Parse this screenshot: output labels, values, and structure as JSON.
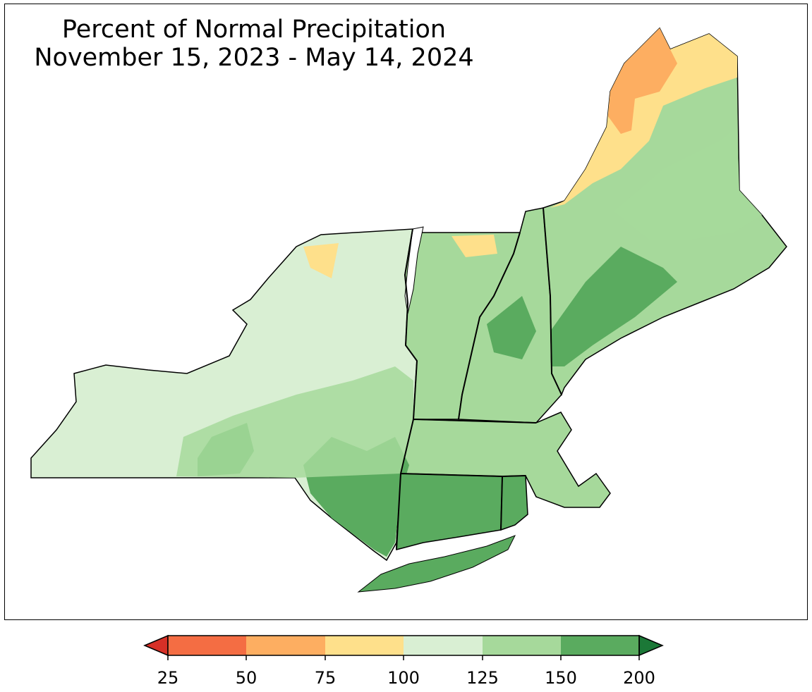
{
  "title": {
    "line1": "Percent of Normal Precipitation",
    "line2": "November 15, 2023 - May 14, 2024"
  },
  "legend": {
    "type": "colorbar",
    "extend": "both",
    "ticks": [
      "25",
      "50",
      "75",
      "100",
      "125",
      "150",
      "200"
    ],
    "colors": [
      "#d73027",
      "#f46d43",
      "#fdae61",
      "#fee08b",
      "#d9efd3",
      "#a6d99b",
      "#5aab5f",
      "#1b7837"
    ]
  },
  "map": {
    "region": "Northeastern United States",
    "states": [
      "New York",
      "Vermont",
      "New Hampshire",
      "Maine",
      "Massachusetts",
      "Connecticut",
      "Rhode Island"
    ],
    "dominant_category": "100-150"
  }
}
